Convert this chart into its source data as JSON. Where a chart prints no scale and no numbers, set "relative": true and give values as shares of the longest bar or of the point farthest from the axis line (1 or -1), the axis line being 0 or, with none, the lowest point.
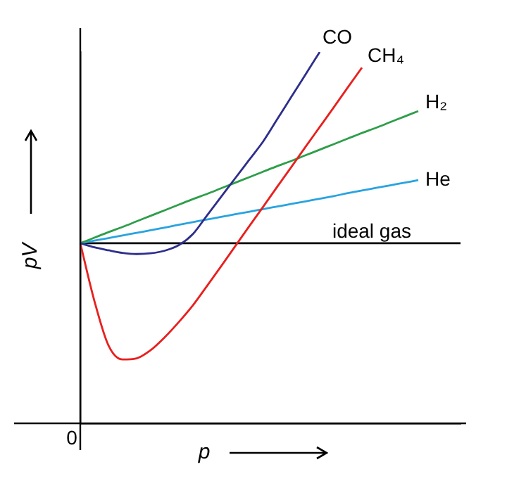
{
  "chart_data": {
    "type": "line",
    "relative": true,
    "xlabel": "p",
    "ylabel": "pV",
    "annotations": [
      "0"
    ],
    "legend": false,
    "grid": false,
    "marker": "none",
    "line_style": "solid",
    "categories": [
      null,
      null,
      null,
      null,
      null,
      null,
      null,
      null,
      null,
      null,
      null,
      null,
      null,
      null,
      null,
      null,
      null,
      null,
      null,
      null,
      null,
      null,
      null,
      null,
      null,
      null,
      null,
      null
    ],
    "series": [
      {
        "name": "CO",
        "color": "#2e2e8c",
        "values": [
          0.485,
          0.474,
          0.466,
          0.459,
          0.456,
          0.458,
          0.465,
          0.48,
          0.51,
          0.56,
          0.61,
          0.66,
          0.71,
          0.76,
          0.82,
          0.88,
          0.94,
          1.0,
          null,
          null,
          null,
          null,
          null,
          null,
          null,
          null,
          null,
          null
        ]
      },
      {
        "name": "CH₄",
        "color": "#e8201e",
        "values": [
          0.485,
          0.33,
          0.21,
          0.172,
          0.175,
          0.197,
          0.232,
          0.273,
          0.318,
          0.37,
          0.423,
          0.477,
          0.531,
          0.584,
          0.638,
          0.691,
          0.745,
          0.798,
          0.851,
          0.905,
          0.958,
          null,
          null,
          null,
          null,
          null,
          null,
          null
        ]
      },
      {
        "name": "H₂",
        "color": "#2e9e4a",
        "values": [
          0.485,
          0.5,
          0.515,
          0.529,
          0.544,
          0.559,
          0.574,
          0.589,
          0.604,
          0.618,
          0.633,
          0.648,
          0.663,
          0.678,
          0.693,
          0.707,
          0.722,
          0.737,
          0.752,
          0.767,
          0.782,
          0.796,
          0.811,
          0.826,
          0.841,
          null,
          null,
          null
        ]
      },
      {
        "name": "He",
        "color": "#29a3e0",
        "values": [
          0.485,
          0.492,
          0.499,
          0.506,
          0.513,
          0.52,
          0.527,
          0.535,
          0.542,
          0.549,
          0.556,
          0.563,
          0.57,
          0.577,
          0.584,
          0.591,
          0.598,
          0.605,
          0.612,
          0.62,
          0.627,
          0.634,
          0.641,
          0.648,
          0.655,
          null,
          null,
          null
        ]
      },
      {
        "name": "ideal gas",
        "color": "#000000",
        "values": [
          0.485,
          0.485,
          0.485,
          0.485,
          0.485,
          0.485,
          0.485,
          0.485,
          0.485,
          0.485,
          0.485,
          0.485,
          0.485,
          0.485,
          0.485,
          0.485,
          0.485,
          0.485,
          0.485,
          0.485,
          0.485,
          0.485,
          0.485,
          0.485,
          0.485,
          0.485,
          0.485,
          0.485
        ]
      }
    ]
  }
}
